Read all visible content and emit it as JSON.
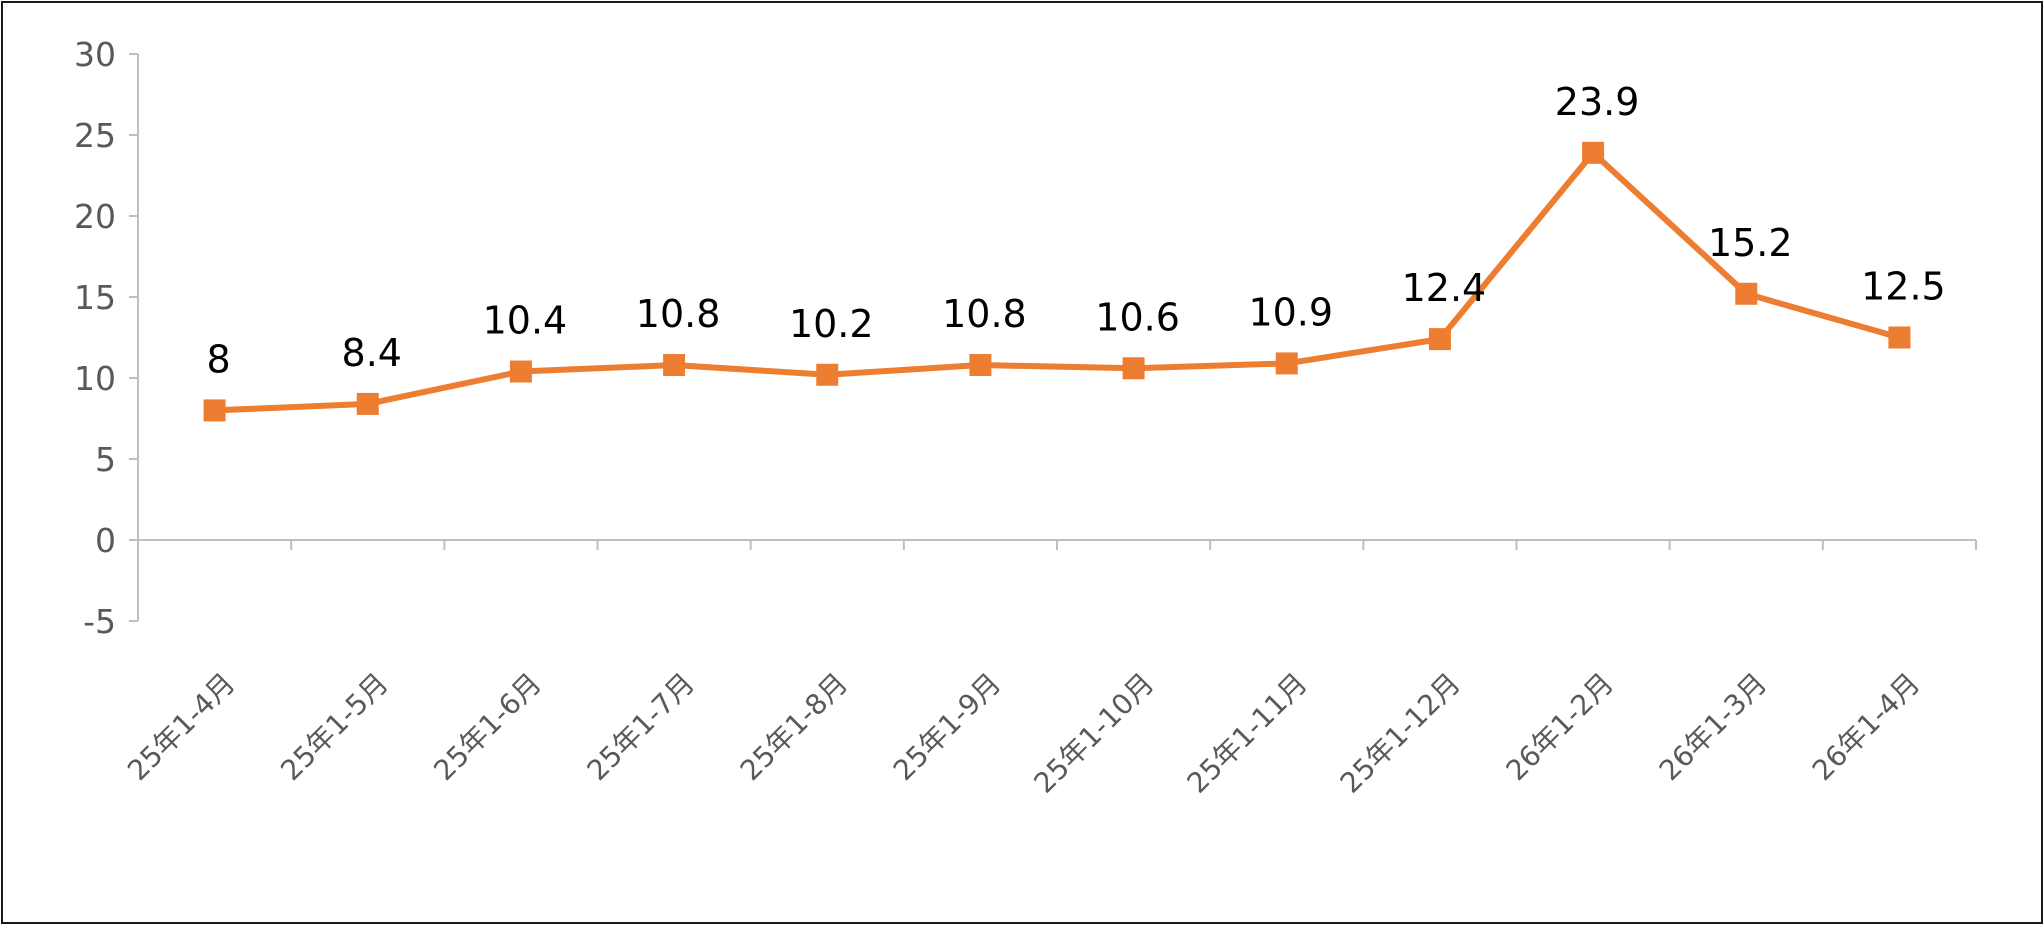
{
  "chart_data": {
    "type": "line",
    "title": "",
    "xlabel": "",
    "ylabel": "",
    "categories": [
      "25年1-4月",
      "25年1-5月",
      "25年1-6月",
      "25年1-7月",
      "25年1-8月",
      "25年1-9月",
      "25年1-10月",
      "25年1-11月",
      "25年1-12月",
      "26年1-2月",
      "26年1-3月",
      "26年1-4月"
    ],
    "series": [
      {
        "values": [
          8,
          8.4,
          10.4,
          10.8,
          10.2,
          10.8,
          10.6,
          10.9,
          12.4,
          23.9,
          15.2,
          12.5
        ],
        "data_labels": [
          "8",
          "8.4",
          "10.4",
          "10.8",
          "10.2",
          "10.8",
          "10.6",
          "10.9",
          "12.4",
          "23.9",
          "15.2",
          "12.5"
        ],
        "color": "#ed7d31",
        "marker": "square"
      }
    ],
    "ylim": [
      -5,
      30
    ],
    "yticks": [
      "30",
      "25",
      "20",
      "15",
      "10",
      "5",
      "0",
      "-5"
    ],
    "grid": false,
    "legend": "none"
  }
}
